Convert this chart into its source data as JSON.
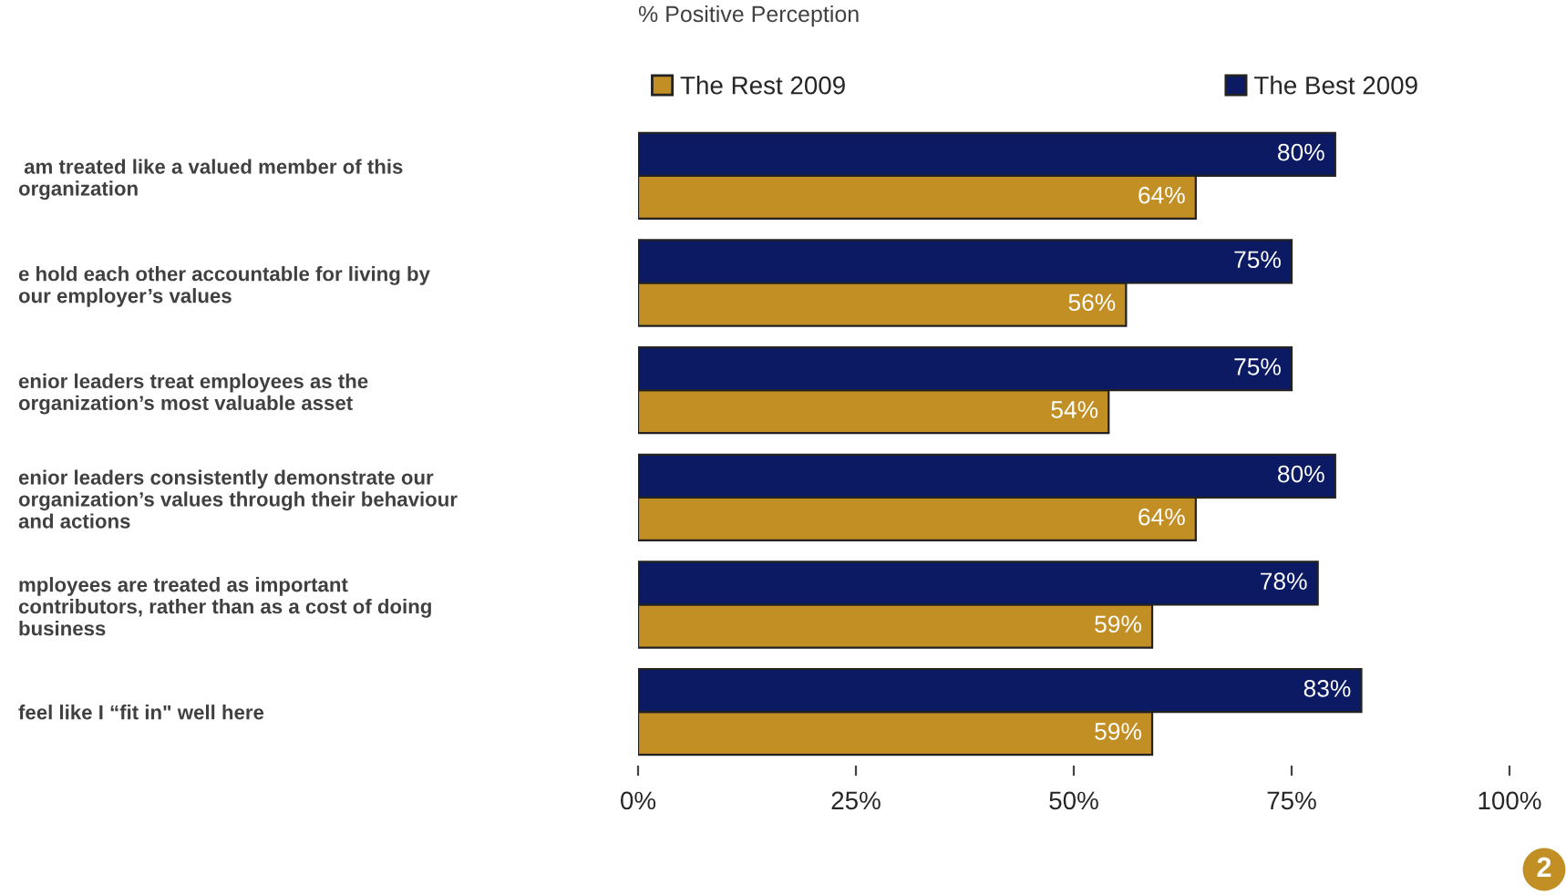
{
  "chart_data": {
    "type": "bar",
    "orientation": "horizontal",
    "xlabel": "% Positive Perception",
    "categories": [
      " am treated like a valued member of this\norganization",
      "e hold each other accountable for living by\nour employer’s values",
      "enior leaders treat employees as the\norganization’s most valuable asset",
      "enior leaders consistently demonstrate our\norganization’s values through their behaviour\nand actions",
      "mployees are treated as important\ncontributors, rather than as a cost of doing\nbusiness",
      "feel like I “fit in\" well here"
    ],
    "series": [
      {
        "name": "The Rest 2009",
        "color": "#c28f25",
        "values": [
          64,
          56,
          54,
          64,
          59,
          59
        ],
        "value_labels": [
          "64%",
          "56%",
          "54%",
          "64%",
          "59%",
          "59%"
        ]
      },
      {
        "name": "The Best 2009",
        "color": "#0c1a64",
        "values": [
          80,
          75,
          75,
          80,
          78,
          83
        ],
        "value_labels": [
          "80%",
          "75%",
          "75%",
          "80%",
          "78%",
          "83%"
        ]
      }
    ],
    "xlim": [
      0,
      100
    ],
    "xticks": [
      {
        "value": 0,
        "label": "0%"
      },
      {
        "value": 25,
        "label": "25%"
      },
      {
        "value": 50,
        "label": "50%"
      },
      {
        "value": 75,
        "label": "75%"
      },
      {
        "value": 100,
        "label": "100%"
      }
    ],
    "legend": "top",
    "grid": false,
    "annotations": [
      "2"
    ]
  }
}
